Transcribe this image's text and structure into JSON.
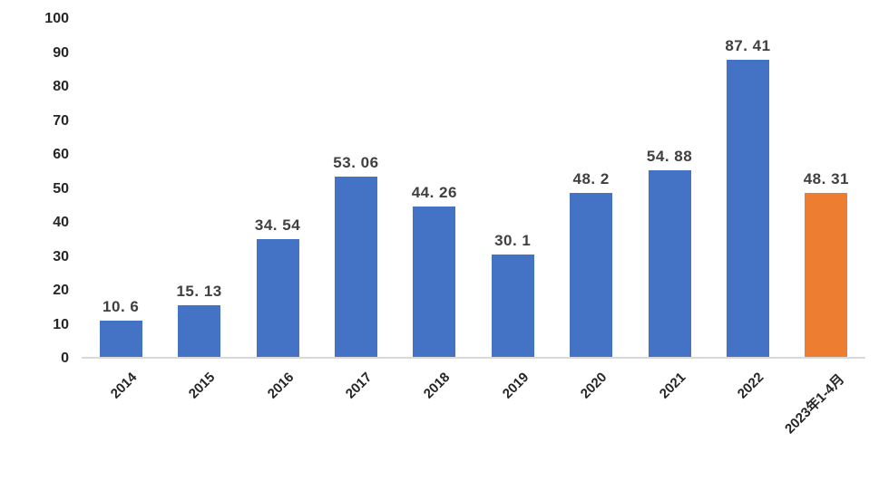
{
  "chart_data": {
    "type": "bar",
    "title": "",
    "xlabel": "",
    "ylabel": "",
    "categories": [
      "2014",
      "2015",
      "2016",
      "2017",
      "2018",
      "2019",
      "2020",
      "2021",
      "2022",
      "2023年1-4月"
    ],
    "values": [
      10.6,
      15.13,
      34.54,
      53.06,
      44.26,
      30.1,
      48.2,
      54.88,
      87.41,
      48.31
    ],
    "value_labels": [
      "10. 6",
      "15. 13",
      "34. 54",
      "53. 06",
      "44. 26",
      "30. 1",
      "48. 2",
      "54. 88",
      "87. 41",
      "48. 31"
    ],
    "bar_colors": [
      "#4472C4",
      "#4472C4",
      "#4472C4",
      "#4472C4",
      "#4472C4",
      "#4472C4",
      "#4472C4",
      "#4472C4",
      "#4472C4",
      "#ED7D31"
    ],
    "ylim": [
      0,
      100
    ],
    "yticks": [
      0,
      10,
      20,
      30,
      40,
      50,
      60,
      70,
      80,
      90,
      100
    ],
    "grid": false,
    "legend": false,
    "colors": {
      "series_primary": "#4472C4",
      "series_highlight": "#ED7D31",
      "axis_baseline": "#D9D9D9",
      "value_label_text": "#404040",
      "tick_text": "#262626",
      "background": "#FFFFFF"
    }
  }
}
